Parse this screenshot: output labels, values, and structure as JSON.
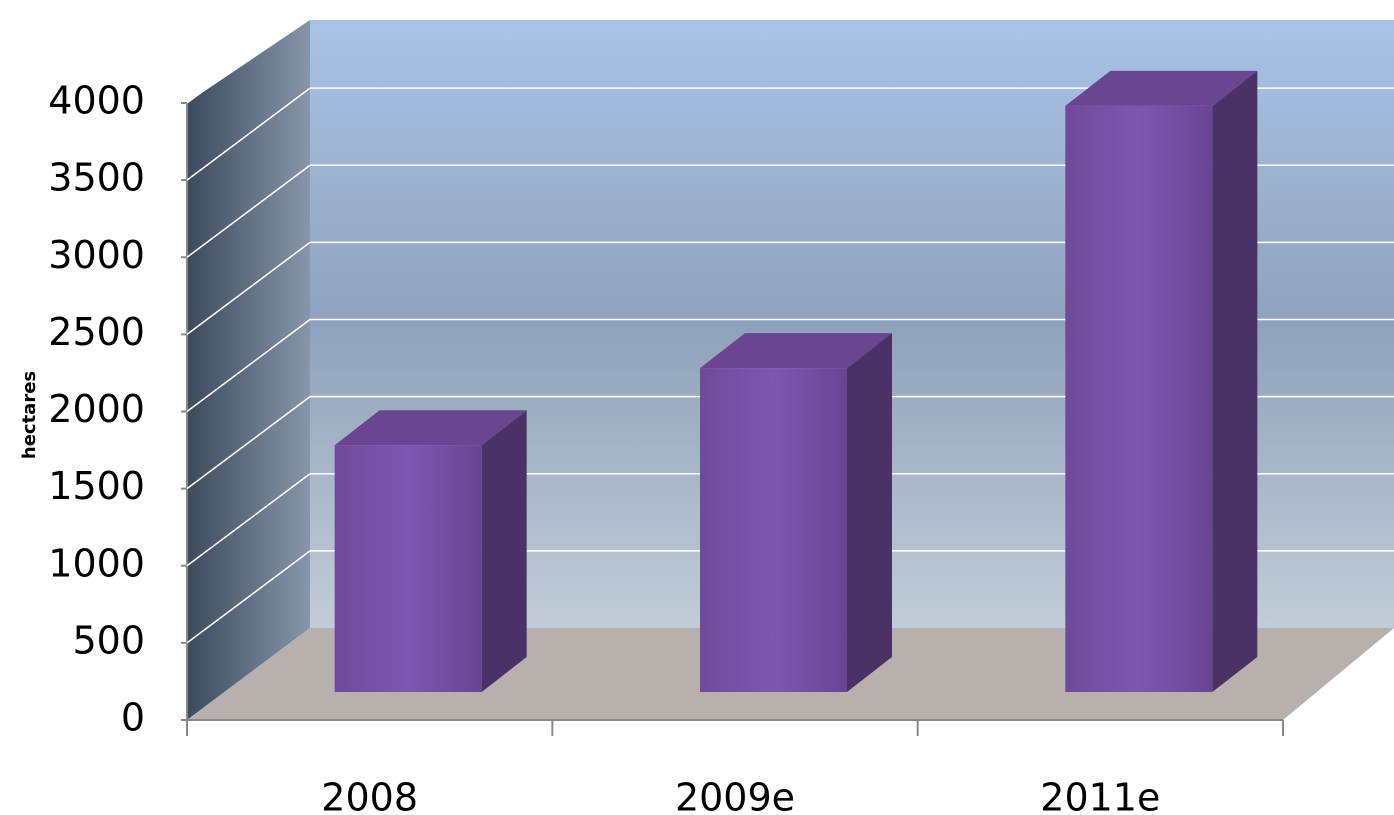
{
  "chart_data": {
    "type": "bar3d",
    "y_label": "hectares",
    "categories": [
      "2008",
      "2009e",
      "2011e"
    ],
    "values": [
      1600,
      2100,
      3800
    ],
    "color": "#7b52a8",
    "ylim": [
      0,
      4000
    ],
    "yticks": [
      0,
      500,
      1000,
      1500,
      2000,
      2500,
      3000,
      3500,
      4000
    ],
    "grid": true
  }
}
